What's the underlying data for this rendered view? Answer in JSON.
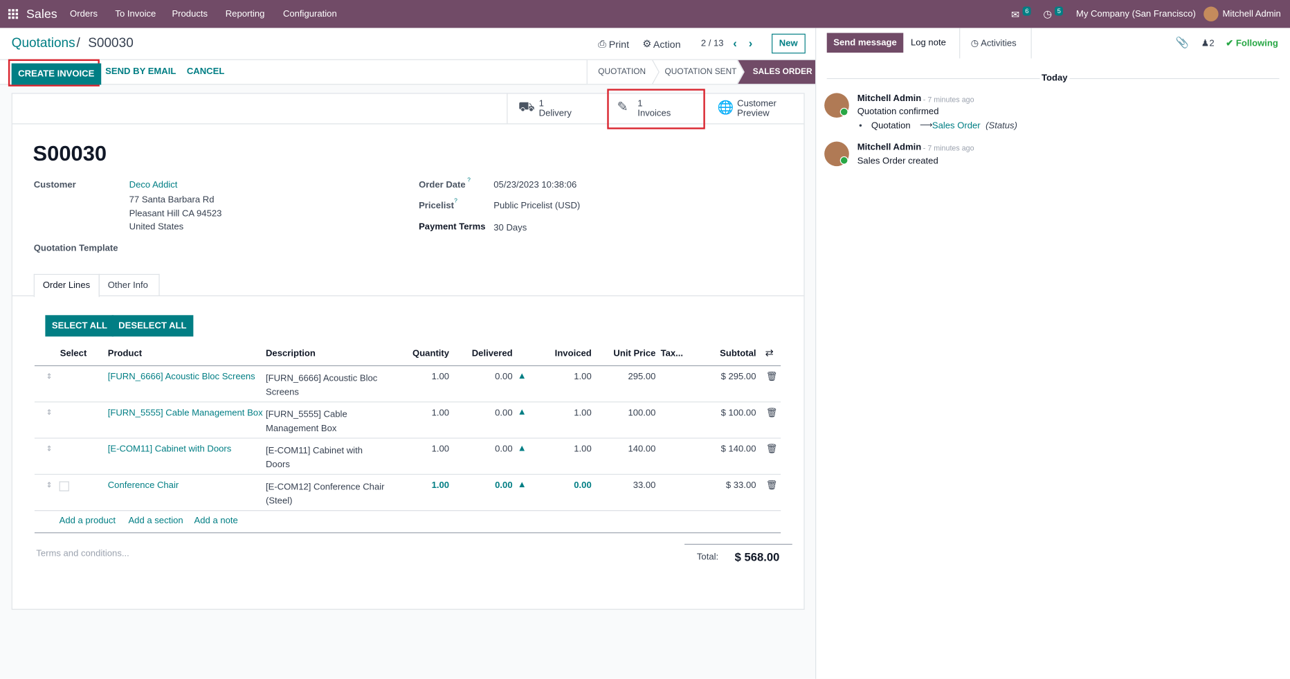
{
  "navbar": {
    "app": "Sales",
    "menu": [
      "Orders",
      "To Invoice",
      "Products",
      "Reporting",
      "Configuration"
    ],
    "messages_count": "6",
    "activities_count": "5",
    "company": "My Company (San Francisco)",
    "user": "Mitchell Admin"
  },
  "control": {
    "breadcrumb": "Quotations",
    "record": "S00030",
    "print": "Print",
    "action": "Action",
    "pager": "2 / 13",
    "new": "New"
  },
  "buttons": [
    "CREATE INVOICE",
    "SEND BY EMAIL",
    "CANCEL"
  ],
  "status": [
    "QUOTATION",
    "QUOTATION SENT",
    "SALES ORDER"
  ],
  "smart_buttons": [
    {
      "count": "1",
      "label": "Delivery"
    },
    {
      "count": "1",
      "label": "Invoices"
    },
    {
      "label": "Customer Preview"
    }
  ],
  "form": {
    "name": "S00030",
    "customer_label": "Customer",
    "customer": "Deco Addict",
    "address": [
      "77 Santa Barbara Rd",
      "Pleasant Hill CA 94523",
      "United States"
    ],
    "template_label": "Quotation Template",
    "order_date_label": "Order Date",
    "order_date": "05/23/2023 10:38:06",
    "pricelist_label": "Pricelist",
    "pricelist": "Public Pricelist (USD)",
    "payment_terms_label": "Payment Terms",
    "payment_terms": "30 Days",
    "help": "?"
  },
  "tabs": [
    "Order Lines",
    "Other Info"
  ],
  "select_buttons": [
    "SELECT ALL",
    "DESELECT ALL"
  ],
  "table": {
    "columns": [
      "Select",
      "Product",
      "Description",
      "Quantity",
      "Delivered",
      "Invoiced",
      "Unit Price",
      "Tax...",
      "Subtotal"
    ],
    "rows": [
      [
        "[FURN_6666] Acoustic Bloc Screens",
        "[FURN_6666] Acoustic Bloc Screens",
        "1.00",
        "0.00",
        "1.00",
        "295.00",
        "$ 295.00"
      ],
      [
        "[FURN_5555] Cable Management Box",
        "[FURN_5555] Cable Management Box",
        "1.00",
        "0.00",
        "1.00",
        "100.00",
        "$ 100.00"
      ],
      [
        "[E-COM11] Cabinet with Doors",
        "[E-COM11] Cabinet with Doors",
        "1.00",
        "0.00",
        "1.00",
        "140.00",
        "$ 140.00"
      ],
      [
        "Conference Chair",
        "[E-COM12] Conference Chair (Steel)",
        "1.00",
        "0.00",
        "0.00",
        "33.00",
        "$ 33.00"
      ]
    ]
  },
  "add_links": [
    "Add a product",
    "Add a section",
    "Add a note"
  ],
  "terms_placeholder": "Terms and conditions...",
  "total_label": "Total:",
  "total": "$ 568.00",
  "chatter": {
    "send_message": "Send message",
    "log_note": "Log note",
    "activities": "Activities",
    "followers": "2",
    "following": "Following",
    "date": "Today",
    "messages": [
      {
        "author": "Mitchell Admin",
        "time": "- 7 minutes ago",
        "body": "Quotation confirmed",
        "tracking": {
          "from": "Quotation",
          "to": "Sales Order",
          "field": "(Status)"
        }
      },
      {
        "author": "Mitchell Admin",
        "time": "- 7 minutes ago",
        "body": "Sales Order created"
      }
    ]
  }
}
